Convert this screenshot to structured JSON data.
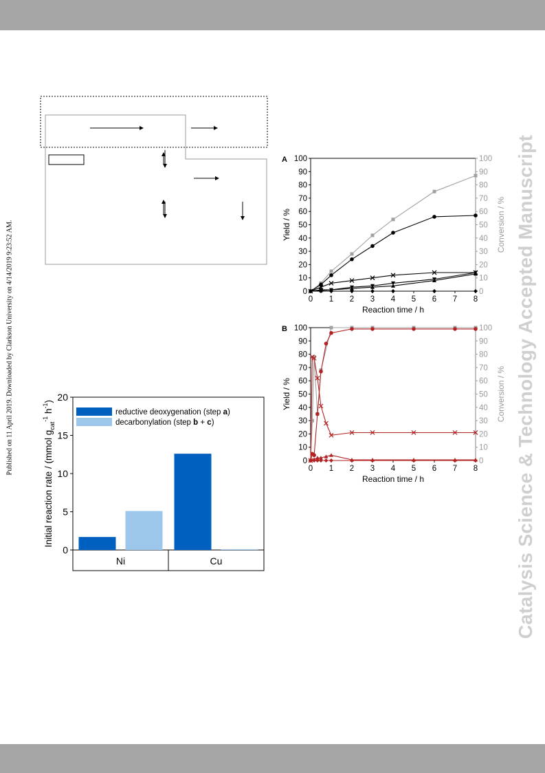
{
  "watermark": "Catalysis Science & Technology Accepted Manuscript",
  "sidebar_note": "Published on 11 April 2019. Downloaded by Clarkson University on 4/14/2019 9:23:52 AM.",
  "colors": {
    "bar": "#a6a6a6",
    "dark_blue": "#0060c0",
    "light_blue": "#9dc7ea",
    "grey_series": "#a0a0a0",
    "red_series": "#b22222"
  },
  "chart_data": [
    {
      "type": "bar",
      "panel": "bar-chart",
      "categories": [
        "Ni",
        "Cu"
      ],
      "series": [
        {
          "name": "reductive deoxygenation (step a)",
          "values": [
            1.7,
            12.6
          ]
        },
        {
          "name": "decarbonylation (step b + c)",
          "values": [
            5.1,
            0.1
          ]
        }
      ],
      "legend": {
        "entry1_text": "reductive deoxygenation (step ",
        "entry1_bold": "a",
        "entry1_end": ")",
        "entry2_text": "decarbonylation (step ",
        "entry2_bold": "b",
        "entry2_mid": " + ",
        "entry2_bold2": "c",
        "entry2_end": ")"
      },
      "ylabel_main": "Initial reaction rate / (mmol g",
      "ylabel_sub": "cat",
      "ylabel_sup1": "-1",
      "ylabel_mid": " h",
      "ylabel_sup2": "-1",
      "ylabel_end": ")",
      "ylim": [
        0,
        20
      ],
      "yticks": [
        "0",
        "5",
        "10",
        "15",
        "20"
      ]
    },
    {
      "type": "line",
      "panel": "A",
      "panel_label": "A",
      "xlabel": "Reaction time / h",
      "ylabel": "Yield / %",
      "ylabel_right": "Conversion / %",
      "xlim": [
        0,
        8
      ],
      "ylim": [
        0,
        100
      ],
      "xticks": [
        "0",
        "1",
        "2",
        "3",
        "4",
        "5",
        "6",
        "7",
        "8"
      ],
      "yticks": [
        "0",
        "10",
        "20",
        "30",
        "40",
        "50",
        "60",
        "70",
        "80",
        "90",
        "100"
      ],
      "series": [
        {
          "marker": "square-grey",
          "x": [
            0,
            0.5,
            1,
            2,
            3,
            4,
            6,
            8
          ],
          "y": [
            0,
            6,
            15,
            28,
            42,
            54,
            75,
            87
          ]
        },
        {
          "marker": "circle",
          "x": [
            0,
            0.5,
            1,
            2,
            3,
            4,
            6,
            8
          ],
          "y": [
            0,
            5,
            12,
            24,
            34,
            44,
            56,
            57
          ]
        },
        {
          "marker": "cross",
          "x": [
            0,
            0.5,
            1,
            2,
            3,
            4,
            6,
            8
          ],
          "y": [
            0,
            3,
            6,
            8,
            10,
            12,
            14,
            14
          ]
        },
        {
          "marker": "triangle-down",
          "x": [
            0,
            0.5,
            1,
            2,
            3,
            4,
            6,
            8
          ],
          "y": [
            0,
            1,
            1,
            3,
            4,
            6,
            9,
            14
          ]
        },
        {
          "marker": "triangle-up",
          "x": [
            0,
            0.5,
            1,
            2,
            3,
            4,
            6,
            8
          ],
          "y": [
            0,
            0.5,
            1,
            2,
            3,
            4,
            8,
            13
          ]
        },
        {
          "marker": "diamond",
          "x": [
            0,
            0.5,
            1,
            2,
            3,
            4,
            6,
            8
          ],
          "y": [
            0,
            0,
            0,
            0,
            0,
            0,
            0,
            0
          ]
        }
      ]
    },
    {
      "type": "line",
      "panel": "B",
      "panel_label": "B",
      "xlabel": "Reaction time / h",
      "ylabel": "Yield / %",
      "ylabel_right": "Conversion / %",
      "xlim": [
        0,
        8
      ],
      "ylim": [
        0,
        100
      ],
      "xticks": [
        "0",
        "1",
        "2",
        "3",
        "4",
        "5",
        "6",
        "7",
        "8"
      ],
      "yticks": [
        "0",
        "10",
        "20",
        "30",
        "40",
        "50",
        "60",
        "70",
        "80",
        "90",
        "100"
      ],
      "series": [
        {
          "marker": "square-grey",
          "x": [
            0,
            0.08,
            0.17,
            0.33,
            0.5,
            1,
            2,
            3,
            5,
            7,
            8
          ],
          "y": [
            0,
            30,
            78,
            35,
            68,
            100,
            100,
            100,
            100,
            100,
            100
          ]
        },
        {
          "marker": "circle-red",
          "x": [
            0,
            0.08,
            0.17,
            0.33,
            0.5,
            0.75,
            1,
            2,
            3,
            5,
            7,
            8
          ],
          "y": [
            0,
            5,
            4,
            35,
            67,
            88,
            96,
            99,
            99,
            99,
            99,
            99
          ]
        },
        {
          "marker": "cross-red",
          "x": [
            0,
            0.08,
            0.17,
            0.33,
            0.5,
            0.75,
            1,
            2,
            3,
            5,
            7,
            8
          ],
          "y": [
            0,
            78,
            77,
            62,
            41,
            28,
            19,
            21,
            21,
            21,
            21,
            21
          ]
        },
        {
          "marker": "triangle-red",
          "x": [
            0,
            0.17,
            0.33,
            0.5,
            0.75,
            1,
            2,
            3,
            5,
            7,
            8
          ],
          "y": [
            0,
            1,
            2,
            2,
            3,
            4,
            0.5,
            0.5,
            0.5,
            0.5,
            0.5
          ]
        },
        {
          "marker": "diamond-red",
          "x": [
            0,
            0.17,
            0.33,
            0.5,
            0.75,
            1,
            2,
            3,
            5,
            7,
            8
          ],
          "y": [
            0,
            0,
            0,
            0,
            0,
            0,
            0,
            0,
            0,
            0,
            0
          ]
        }
      ]
    }
  ]
}
